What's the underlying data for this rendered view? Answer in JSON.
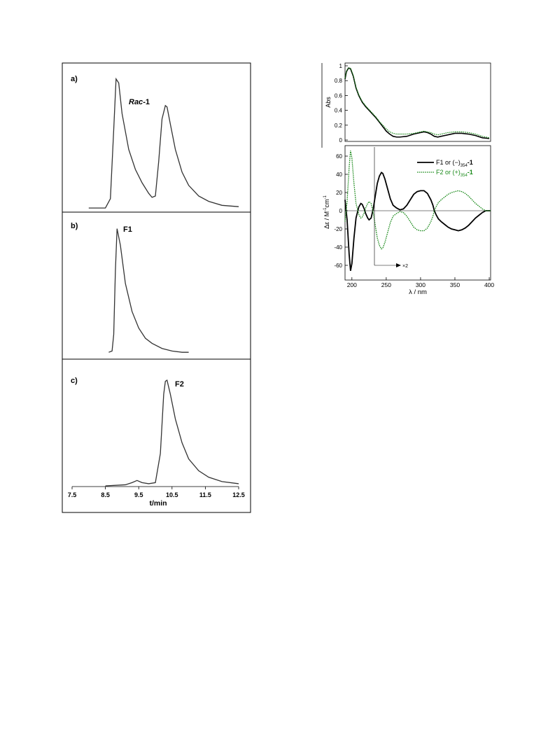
{
  "chart_data": [
    {
      "type": "line",
      "panel": "a)",
      "label": "Rac-1",
      "series": [
        {
          "x": [
            8.0,
            8.5,
            8.65,
            8.75,
            8.82,
            8.9,
            9.0,
            9.2,
            9.4,
            9.6,
            9.8,
            9.9,
            10.0,
            10.1,
            10.2,
            10.3,
            10.35,
            10.45,
            10.6,
            10.8,
            11.0,
            11.3,
            11.6,
            12.0,
            12.5
          ],
          "y": [
            0.01,
            0.01,
            0.08,
            0.6,
            0.98,
            0.95,
            0.72,
            0.45,
            0.3,
            0.2,
            0.12,
            0.09,
            0.1,
            0.36,
            0.68,
            0.78,
            0.77,
            0.64,
            0.45,
            0.28,
            0.18,
            0.1,
            0.06,
            0.03,
            0.02
          ]
        }
      ]
    },
    {
      "type": "line",
      "panel": "b)",
      "label": "F1",
      "series": [
        {
          "x": [
            8.6,
            8.7,
            8.75,
            8.8,
            8.85,
            8.95,
            9.1,
            9.3,
            9.5,
            9.7,
            9.9,
            10.2,
            10.5,
            10.8,
            11.0
          ],
          "y": [
            0.01,
            0.02,
            0.15,
            0.65,
            0.98,
            0.85,
            0.55,
            0.33,
            0.2,
            0.12,
            0.08,
            0.04,
            0.02,
            0.01,
            0.01
          ]
        }
      ]
    },
    {
      "type": "line",
      "panel": "c)",
      "label": "F2",
      "xlabel": "t/min",
      "xticks": [
        "7.5",
        "8.5",
        "9.5",
        "10.5",
        "11.5",
        "12.5"
      ],
      "xlim": [
        7.5,
        12.5
      ],
      "series": [
        {
          "x": [
            8.5,
            9.1,
            9.3,
            9.45,
            9.6,
            9.8,
            10.0,
            10.15,
            10.25,
            10.3,
            10.35,
            10.45,
            10.6,
            10.8,
            11.0,
            11.3,
            11.6,
            12.0,
            12.5
          ],
          "y": [
            0.0,
            0.01,
            0.03,
            0.05,
            0.03,
            0.02,
            0.03,
            0.3,
            0.85,
            0.97,
            0.98,
            0.85,
            0.62,
            0.4,
            0.25,
            0.14,
            0.08,
            0.04,
            0.02
          ]
        }
      ]
    },
    {
      "type": "line",
      "panel": "absorption",
      "ylabel": "Abs",
      "xlim": [
        190,
        402
      ],
      "ylim": [
        0,
        1
      ],
      "yticks": [
        "0",
        "0.2",
        "0.4",
        "0.6",
        "0.8",
        "1"
      ],
      "series": [
        {
          "x": [
            190,
            192,
            195,
            198,
            202,
            206,
            210,
            215,
            220,
            225,
            230,
            235,
            240,
            245,
            250,
            255,
            260,
            265,
            270,
            280,
            290,
            300,
            305,
            310,
            315,
            320,
            325,
            330,
            340,
            350,
            360,
            370,
            380,
            390,
            400
          ],
          "y": [
            0.82,
            0.92,
            0.97,
            0.96,
            0.86,
            0.7,
            0.6,
            0.51,
            0.45,
            0.4,
            0.35,
            0.3,
            0.24,
            0.18,
            0.12,
            0.08,
            0.05,
            0.04,
            0.04,
            0.05,
            0.08,
            0.1,
            0.11,
            0.1,
            0.08,
            0.05,
            0.04,
            0.05,
            0.07,
            0.09,
            0.09,
            0.08,
            0.06,
            0.03,
            0.02
          ]
        },
        {
          "x": [
            190,
            192,
            195,
            198,
            202,
            206,
            210,
            215,
            220,
            225,
            230,
            235,
            240,
            245,
            250,
            255,
            260,
            265,
            270,
            280,
            290,
            300,
            305,
            310,
            315,
            320,
            325,
            330,
            340,
            350,
            360,
            370,
            380,
            390,
            400
          ],
          "y": [
            0.83,
            0.93,
            0.97,
            0.97,
            0.87,
            0.71,
            0.61,
            0.52,
            0.46,
            0.41,
            0.36,
            0.31,
            0.25,
            0.2,
            0.15,
            0.11,
            0.09,
            0.08,
            0.08,
            0.08,
            0.09,
            0.11,
            0.12,
            0.11,
            0.1,
            0.08,
            0.07,
            0.08,
            0.1,
            0.11,
            0.11,
            0.1,
            0.08,
            0.05,
            0.03
          ]
        }
      ]
    },
    {
      "type": "line",
      "panel": "cd",
      "xlabel": "λ / nm",
      "ylabel_main": "Δε / M",
      "ylabel_sup1": "-1",
      "ylabel_mid": "cm",
      "ylabel_sup2": "-1",
      "xlim": [
        190,
        402
      ],
      "ylim": [
        -70,
        70
      ],
      "xticks": [
        "200",
        "250",
        "300",
        "350",
        "400"
      ],
      "yticks": [
        "60",
        "40",
        "20",
        "0",
        "-20",
        "-40",
        "-60"
      ],
      "annotation": "×2",
      "series": [
        {
          "legend_main": "F1 or (−)",
          "legend_sub": "354",
          "legend_tail": "-1",
          "x": [
            190,
            193,
            196,
            198,
            200,
            203,
            206,
            210,
            213,
            215,
            218,
            220,
            223,
            225,
            228,
            231,
            234,
            237,
            240,
            243,
            245,
            248,
            252,
            256,
            260,
            265,
            270,
            275,
            280,
            285,
            290,
            295,
            300,
            305,
            310,
            315,
            318,
            320,
            323,
            326,
            330,
            335,
            340,
            345,
            350,
            355,
            360,
            365,
            370,
            375,
            380,
            385,
            390,
            395,
            400,
            402
          ],
          "y": [
            12,
            -10,
            -48,
            -66,
            -58,
            -30,
            -8,
            4,
            8,
            7,
            2,
            -3,
            -8,
            -10,
            -8,
            2,
            16,
            30,
            38,
            42,
            41,
            35,
            24,
            13,
            6,
            3,
            1,
            2,
            6,
            12,
            18,
            21,
            22,
            22,
            19,
            12,
            6,
            0,
            -5,
            -9,
            -12,
            -15,
            -18,
            -20,
            -21,
            -22,
            -21,
            -19,
            -16,
            -12,
            -8,
            -5,
            -2,
            0,
            0,
            0
          ]
        },
        {
          "legend_main": "F2 or (+)",
          "legend_sub": "354",
          "legend_tail": "-1",
          "x": [
            190,
            193,
            196,
            198,
            200,
            203,
            206,
            210,
            213,
            215,
            218,
            220,
            223,
            225,
            228,
            231,
            234,
            237,
            240,
            243,
            245,
            248,
            252,
            256,
            260,
            265,
            270,
            275,
            280,
            285,
            290,
            295,
            300,
            305,
            310,
            315,
            318,
            320,
            323,
            326,
            330,
            335,
            340,
            345,
            350,
            355,
            360,
            365,
            370,
            375,
            380,
            385,
            390,
            395,
            400,
            402
          ],
          "y": [
            -12,
            10,
            48,
            66,
            58,
            30,
            8,
            -4,
            -8,
            -7,
            -2,
            3,
            8,
            10,
            8,
            -2,
            -16,
            -30,
            -38,
            -42,
            -41,
            -35,
            -24,
            -13,
            -6,
            -3,
            -1,
            -2,
            -6,
            -12,
            -18,
            -21,
            -22,
            -22,
            -19,
            -12,
            -6,
            0,
            5,
            9,
            12,
            15,
            18,
            20,
            21,
            22,
            21,
            19,
            16,
            12,
            8,
            5,
            2,
            0,
            0,
            0
          ]
        }
      ]
    }
  ],
  "colors": {
    "frame": "#000000",
    "trace": "#333333",
    "f1": "#000000",
    "f2": "#1b8a1b",
    "axis": "#000000"
  }
}
